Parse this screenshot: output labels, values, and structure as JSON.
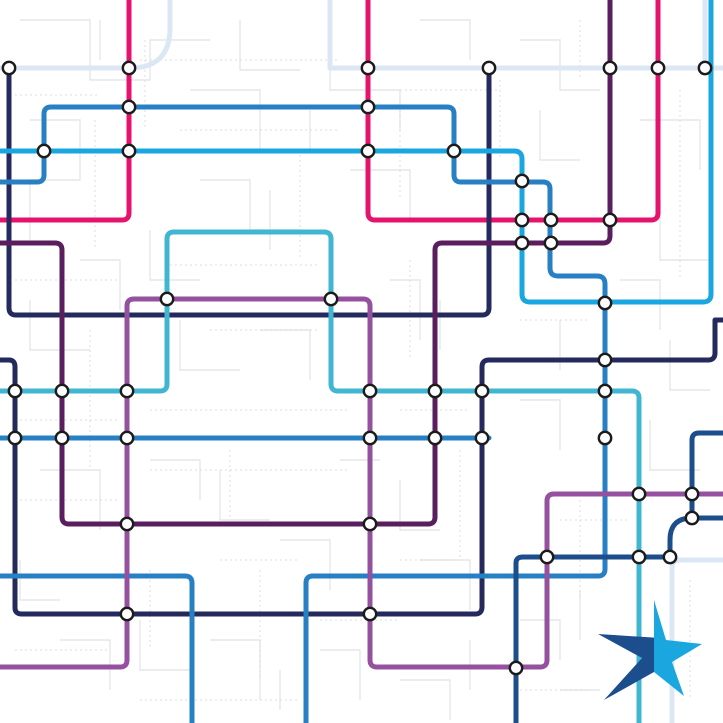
{
  "map": {
    "background": "#ffffff",
    "lines": [
      {
        "id": "magenta",
        "color": "#e5136e"
      },
      {
        "id": "navy",
        "color": "#242a5c"
      },
      {
        "id": "blue",
        "color": "#2780c4"
      },
      {
        "id": "cyan",
        "color": "#1aa7df"
      },
      {
        "id": "teal",
        "color": "#41b6d3"
      },
      {
        "id": "plum",
        "color": "#5a1e5e"
      },
      {
        "id": "violet",
        "color": "#9550a0"
      },
      {
        "id": "dark-blue",
        "color": "#1c4d8c"
      },
      {
        "id": "pale-blue",
        "color": "#dce7f5"
      }
    ],
    "logo": {
      "icon": "star-logo-icon",
      "colors": [
        "#1c4d8c",
        "#1aa7df"
      ]
    }
  }
}
